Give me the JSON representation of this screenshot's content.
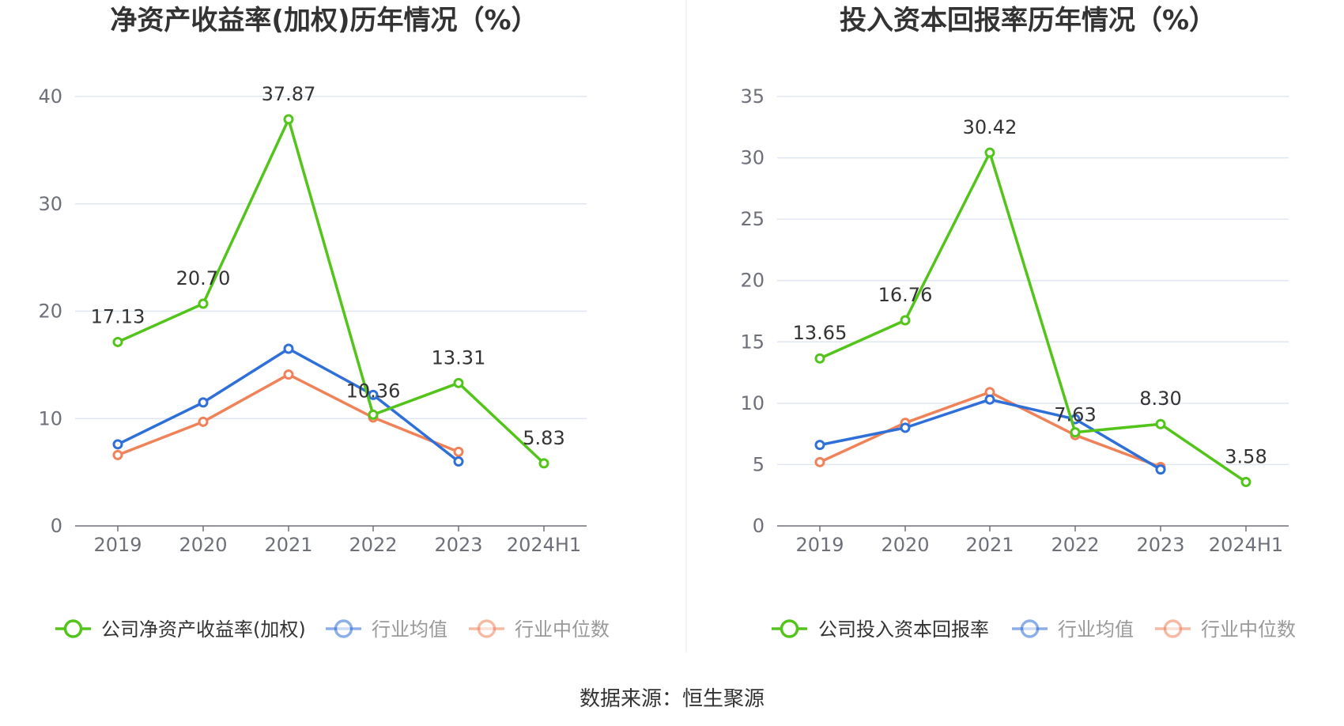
{
  "source_text": "数据来源：恒生聚源",
  "chart_data": [
    {
      "type": "line",
      "title": "净资产收益率(加权)历年情况（%）",
      "categories": [
        "2019",
        "2020",
        "2021",
        "2022",
        "2023",
        "2024H1"
      ],
      "y_ticks": [
        "0",
        "10",
        "20",
        "30",
        "40"
      ],
      "ylim": [
        0,
        40
      ],
      "grid": true,
      "legend_position": "bottom",
      "series": [
        {
          "name": "公司净资产收益率(加权)",
          "color": "#52c41a",
          "values": [
            17.13,
            20.7,
            37.87,
            10.36,
            13.31,
            5.83
          ],
          "labels": [
            "17.13",
            "20.70",
            "37.87",
            "10.36",
            "13.31",
            "5.83"
          ]
        },
        {
          "name": "行业均值",
          "color": "#2f6fd8",
          "values": [
            7.6,
            11.5,
            16.5,
            12.2,
            6.0,
            null
          ]
        },
        {
          "name": "行业中位数",
          "color": "#f0825a",
          "values": [
            6.6,
            9.7,
            14.1,
            10.1,
            6.9,
            null
          ]
        }
      ]
    },
    {
      "type": "line",
      "title": "投入资本回报率历年情况（%）",
      "categories": [
        "2019",
        "2020",
        "2021",
        "2022",
        "2023",
        "2024H1"
      ],
      "y_ticks": [
        "0",
        "5",
        "10",
        "15",
        "20",
        "25",
        "30",
        "35"
      ],
      "ylim": [
        0,
        35
      ],
      "grid": true,
      "legend_position": "bottom",
      "series": [
        {
          "name": "公司投入资本回报率",
          "color": "#52c41a",
          "values": [
            13.65,
            16.76,
            30.42,
            7.63,
            8.3,
            3.58
          ],
          "labels": [
            "13.65",
            "16.76",
            "30.42",
            "7.63",
            "8.30",
            "3.58"
          ]
        },
        {
          "name": "行业均值",
          "color": "#2f6fd8",
          "values": [
            6.6,
            8.0,
            10.3,
            8.7,
            4.6,
            null
          ]
        },
        {
          "name": "行业中位数",
          "color": "#f0825a",
          "values": [
            5.2,
            8.4,
            10.9,
            7.4,
            4.8,
            null
          ]
        }
      ]
    }
  ]
}
